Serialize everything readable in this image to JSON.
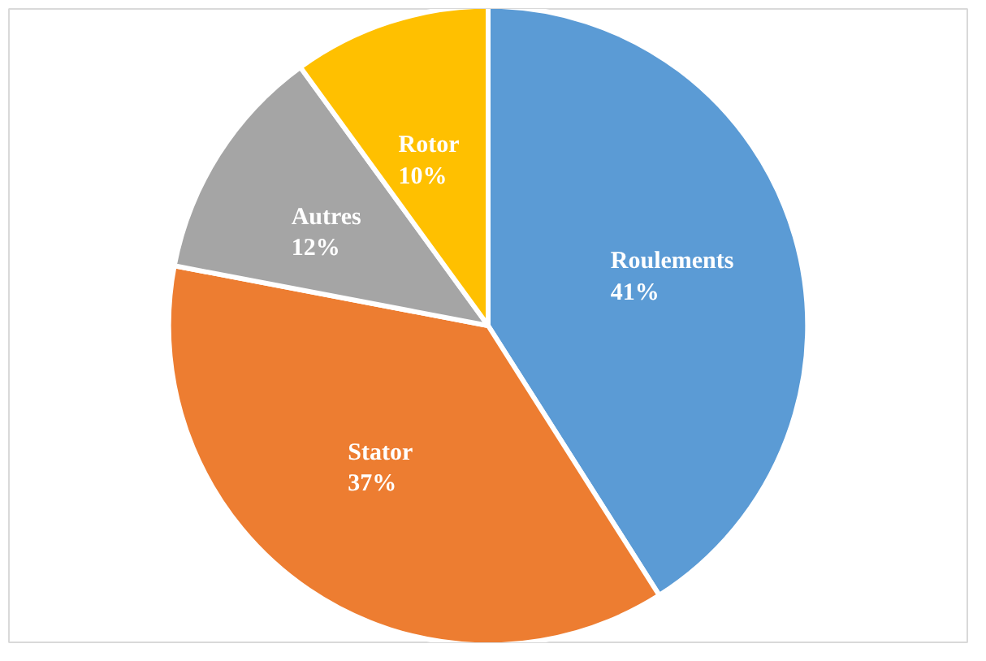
{
  "chart_data": {
    "type": "pie",
    "categories": [
      "Roulements",
      "Stator",
      "Autres",
      "Rotor"
    ],
    "values": [
      41,
      37,
      12,
      10
    ],
    "colors": [
      "#5b9bd5",
      "#ed7d31",
      "#a5a5a5",
      "#ffc000"
    ],
    "value_labels": [
      "41%",
      "37%",
      "12%",
      "10%"
    ],
    "legend": false
  }
}
